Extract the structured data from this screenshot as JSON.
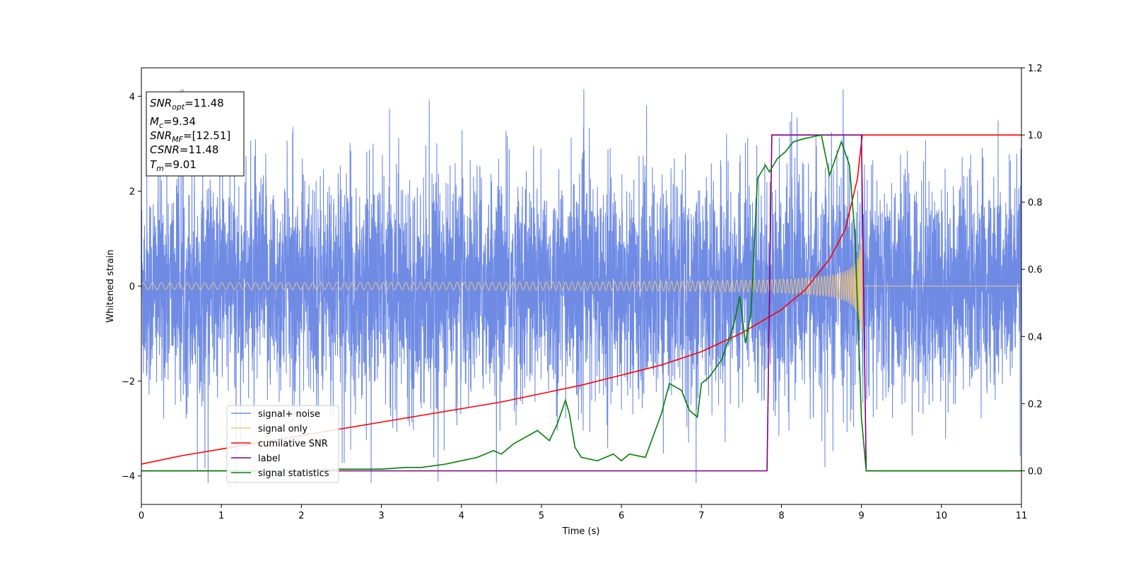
{
  "chart_data": {
    "type": "line",
    "xlabel": "Time (s)",
    "ylabel": "Whitened strain",
    "xlim": [
      0,
      11
    ],
    "ylim_left": [
      -4.6,
      4.6
    ],
    "ylim_right": [
      -0.1,
      1.2
    ],
    "x_ticks": [
      0,
      1,
      2,
      3,
      4,
      5,
      6,
      7,
      8,
      9,
      10,
      11
    ],
    "y_ticks_left": [
      -4,
      -2,
      0,
      2,
      4
    ],
    "y_ticks_right": [
      0.0,
      0.2,
      0.4,
      0.6,
      0.8,
      1.0,
      1.2
    ],
    "grid": false,
    "legend_position": "bottom-left",
    "info_box": {
      "snr_opt": {
        "base": "SNR",
        "sub": "opt",
        "value": "=11.48"
      },
      "mc": {
        "base": "M",
        "sub": "c",
        "value": "=9.34"
      },
      "snr_mf": {
        "base": "SNR",
        "sub": "MF",
        "value": "=[12.51]"
      },
      "csnr": {
        "base": "CSNR",
        "sub": "",
        "value": "=11.48"
      },
      "tm": {
        "base": "T",
        "sub": "m",
        "value": "=9.01"
      }
    },
    "series": [
      {
        "name": "signal+ noise",
        "color": "#6f8be4",
        "axis": "left",
        "noise_amplitude": 3.3,
        "description_values": {
          "typical_range": [
            -3.5,
            3.6
          ],
          "max": 4.15,
          "min": -4.15
        }
      },
      {
        "name": "signal only",
        "color": "#f5c97a",
        "axis": "left",
        "chirp": {
          "start_amplitude": 0.05,
          "end_amplitude": 1.2,
          "merger_time": 9.01,
          "end_time": 9.01
        }
      },
      {
        "name": "cumilative SNR",
        "color": "#ff0000",
        "axis": "right",
        "x": [
          0,
          0.5,
          1,
          1.5,
          2,
          2.5,
          3,
          3.5,
          4,
          4.5,
          5,
          5.5,
          6,
          6.5,
          7,
          7.5,
          8,
          8.3,
          8.6,
          8.8,
          8.95,
          9.01,
          11
        ],
        "y": [
          0.02,
          0.045,
          0.065,
          0.085,
          0.105,
          0.125,
          0.145,
          0.165,
          0.185,
          0.205,
          0.23,
          0.255,
          0.285,
          0.315,
          0.355,
          0.41,
          0.48,
          0.54,
          0.63,
          0.72,
          0.87,
          1.0,
          1.0
        ]
      },
      {
        "name": "label",
        "color": "#800080",
        "axis": "right",
        "x": [
          0,
          7.82,
          7.88,
          9.0,
          9.06,
          11
        ],
        "y": [
          0,
          0,
          1,
          1,
          0,
          0
        ]
      },
      {
        "name": "signal statistics",
        "color": "#008000",
        "axis": "right",
        "x": [
          0,
          1,
          2,
          2.5,
          3,
          3.3,
          3.5,
          3.8,
          4,
          4.2,
          4.4,
          4.5,
          4.65,
          4.8,
          4.95,
          5.1,
          5.2,
          5.3,
          5.35,
          5.42,
          5.5,
          5.7,
          5.8,
          5.9,
          6.0,
          6.1,
          6.3,
          6.5,
          6.6,
          6.75,
          6.85,
          6.95,
          7.0,
          7.1,
          7.25,
          7.4,
          7.48,
          7.55,
          7.62,
          7.7,
          7.8,
          7.85,
          7.95,
          8.05,
          8.15,
          8.3,
          8.5,
          8.6,
          8.75,
          8.85,
          8.92,
          9.0,
          9.06,
          11
        ],
        "y": [
          0,
          0,
          0,
          0.005,
          0.005,
          0.01,
          0.01,
          0.02,
          0.03,
          0.04,
          0.06,
          0.05,
          0.08,
          0.1,
          0.12,
          0.09,
          0.14,
          0.21,
          0.17,
          0.07,
          0.04,
          0.03,
          0.04,
          0.05,
          0.03,
          0.05,
          0.04,
          0.17,
          0.26,
          0.24,
          0.18,
          0.16,
          0.26,
          0.28,
          0.33,
          0.43,
          0.52,
          0.38,
          0.47,
          0.87,
          0.91,
          0.89,
          0.93,
          0.95,
          0.98,
          0.99,
          1.0,
          0.88,
          0.98,
          0.91,
          0.7,
          0.16,
          0.0,
          0.0
        ]
      }
    ]
  }
}
